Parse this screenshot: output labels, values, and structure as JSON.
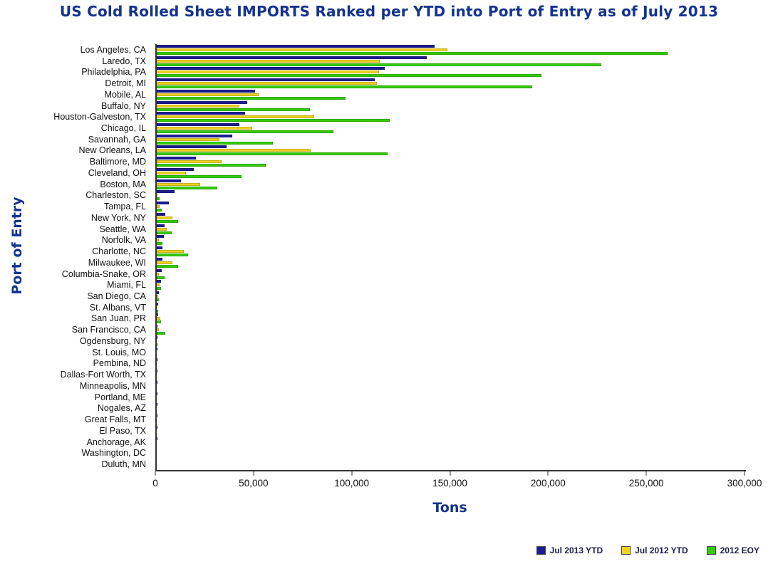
{
  "chart_data": {
    "type": "bar",
    "orientation": "horizontal",
    "title": "US Cold Rolled Sheet IMPORTS Ranked per YTD into Port of Entry as of July 2013",
    "xlabel": "Tons",
    "ylabel": "Port of Entry",
    "xlim": [
      0,
      300000
    ],
    "x_ticks": [
      0,
      50000,
      100000,
      150000,
      200000,
      250000,
      300000
    ],
    "x_tick_labels": [
      "0",
      "50,000",
      "100,000",
      "150,000",
      "200,000",
      "250,000",
      "300,000"
    ],
    "grid": false,
    "legend_position": "bottom-right",
    "categories": [
      "Los Angeles, CA",
      "Laredo, TX",
      "Philadelphia, PA",
      "Detroit, MI",
      "Mobile, AL",
      "Buffalo, NY",
      "Houston-Galveston, TX",
      "Chicago, IL",
      "Savannah, GA",
      "New Orleans, LA",
      "Baltimore, MD",
      "Cleveland, OH",
      "Boston, MA",
      "Charleston, SC",
      "Tampa, FL",
      "New York, NY",
      "Seattle, WA",
      "Norfolk, VA",
      "Charlotte, NC",
      "Milwaukee, WI",
      "Columbia-Snake, OR",
      "Miami, FL",
      "San Diego, CA",
      "St. Albans, VT",
      "San Juan, PR",
      "San Francisco, CA",
      "Ogdensburg, NY",
      "St. Louis, MO",
      "Pembina, ND",
      "Dallas-Fort Worth, TX",
      "Minneapolis, MN",
      "Portland, ME",
      "Nogales, AZ",
      "Great Falls, MT",
      "El Paso, TX",
      "Anchorage, AK",
      "Washington, DC",
      "Duluth, MN"
    ],
    "series": [
      {
        "name": "Jul 2013 YTD",
        "color": "#1c1c94",
        "values": [
          141500,
          137500,
          116000,
          111000,
          50000,
          46000,
          45000,
          42000,
          38500,
          35500,
          20000,
          19000,
          12500,
          9000,
          6200,
          4400,
          4000,
          3600,
          2900,
          2900,
          2500,
          2200,
          1100,
          700,
          600,
          500,
          300,
          250,
          200,
          150,
          120,
          100,
          80,
          60,
          40,
          30,
          20,
          10
        ]
      },
      {
        "name": "Jul 2012 YTD",
        "color": "#f0d21d",
        "values": [
          148000,
          113500,
          113000,
          112000,
          52000,
          42000,
          80000,
          48500,
          32000,
          78500,
          33000,
          15000,
          22000,
          500,
          1500,
          8000,
          5000,
          1000,
          13800,
          8000,
          1000,
          1500,
          600,
          100,
          1800,
          1000,
          0,
          0,
          0,
          0,
          0,
          0,
          0,
          0,
          0,
          0,
          0,
          0
        ]
      },
      {
        "name": "2012 EOY",
        "color": "#33cc00",
        "values": [
          260000,
          226500,
          196000,
          191000,
          96000,
          78000,
          118500,
          90000,
          59000,
          117500,
          55500,
          43000,
          31000,
          1500,
          2500,
          11000,
          7500,
          2900,
          16000,
          11000,
          4000,
          2200,
          1000,
          600,
          2200,
          4300,
          300,
          0,
          0,
          0,
          0,
          0,
          0,
          0,
          0,
          0,
          0,
          0
        ]
      }
    ]
  }
}
